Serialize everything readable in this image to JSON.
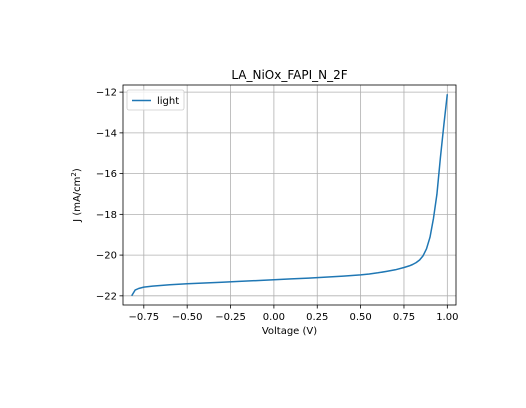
{
  "chart_data": {
    "type": "line",
    "title": "LA_NiOx_FAPI_N_2F",
    "xlabel": "Voltage (V)",
    "ylabel_main": "J (mA/cm",
    "ylabel_sup": "2",
    "ylabel_close": ")",
    "xlim": [
      -0.87,
      1.05
    ],
    "ylim": [
      -22.45,
      -11.65
    ],
    "grid": true,
    "legend_position": "top-left",
    "xticks": [
      {
        "value": -0.75,
        "label": "−0.75"
      },
      {
        "value": -0.5,
        "label": "−0.50"
      },
      {
        "value": -0.25,
        "label": "−0.25"
      },
      {
        "value": 0.0,
        "label": "0.00"
      },
      {
        "value": 0.25,
        "label": "0.25"
      },
      {
        "value": 0.5,
        "label": "0.50"
      },
      {
        "value": 0.75,
        "label": "0.75"
      },
      {
        "value": 1.0,
        "label": "1.00"
      }
    ],
    "yticks": [
      {
        "value": -22,
        "label": "−22"
      },
      {
        "value": -20,
        "label": "−20"
      },
      {
        "value": -18,
        "label": "−18"
      },
      {
        "value": -16,
        "label": "−16"
      },
      {
        "value": -14,
        "label": "−14"
      },
      {
        "value": -12,
        "label": "−12"
      }
    ],
    "series": [
      {
        "name": "light",
        "color": "#1f77b4",
        "x": [
          -0.82,
          -0.8,
          -0.78,
          -0.75,
          -0.7,
          -0.6,
          -0.5,
          -0.4,
          -0.3,
          -0.2,
          -0.1,
          0.0,
          0.1,
          0.2,
          0.3,
          0.4,
          0.5,
          0.55,
          0.6,
          0.65,
          0.7,
          0.75,
          0.78,
          0.8,
          0.82,
          0.84,
          0.86,
          0.88,
          0.9,
          0.92,
          0.94,
          0.96,
          0.98,
          1.0
        ],
        "y": [
          -22.0,
          -21.72,
          -21.64,
          -21.57,
          -21.52,
          -21.46,
          -21.41,
          -21.37,
          -21.33,
          -21.29,
          -21.25,
          -21.21,
          -21.17,
          -21.13,
          -21.08,
          -21.03,
          -20.97,
          -20.93,
          -20.87,
          -20.8,
          -20.72,
          -20.61,
          -20.53,
          -20.46,
          -20.37,
          -20.24,
          -20.04,
          -19.69,
          -19.12,
          -18.19,
          -17.02,
          -15.22,
          -13.59,
          -12.1
        ]
      }
    ]
  }
}
